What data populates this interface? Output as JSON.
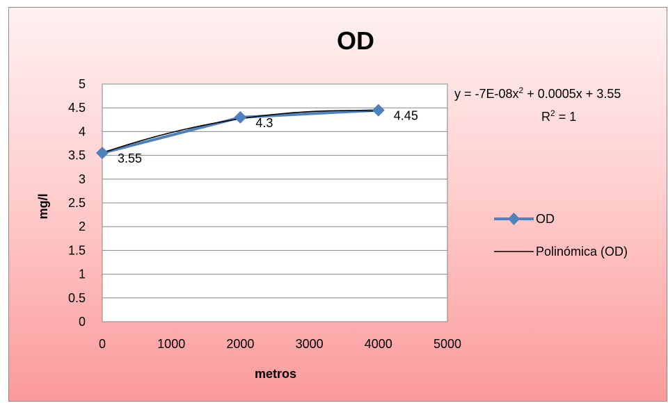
{
  "chart_data": {
    "type": "line",
    "title": "OD",
    "xlabel": "metros",
    "ylabel": "mg/l",
    "xlim": [
      0,
      5000
    ],
    "ylim": [
      0,
      5
    ],
    "x_ticks": [
      "0",
      "1000",
      "2000",
      "3000",
      "4000",
      "5000"
    ],
    "y_ticks": [
      "0",
      "0.5",
      "1",
      "1.5",
      "2",
      "2.5",
      "3",
      "3.5",
      "4",
      "4.5",
      "5"
    ],
    "grid": "horizontal",
    "series": [
      {
        "name": "OD",
        "x": [
          0,
          2000,
          4000
        ],
        "y": [
          3.55,
          4.3,
          4.45
        ],
        "data_labels": [
          "3.55",
          "4.3",
          "4.45"
        ],
        "color": "#4f81bd",
        "marker": "diamond"
      }
    ],
    "trendline": {
      "name": "Polinómica (OD)",
      "type": "polynomial",
      "order": 2,
      "coefficients": {
        "a": -7e-08,
        "b": 0.0005,
        "c": 3.55
      },
      "equation": {
        "prefix": "y = -7E-08x",
        "sup": "2",
        "suffix": " + 0.0005x + 3.55",
        "r2_prefix": "R",
        "r2_sup": "2",
        "r2_suffix": " = 1"
      },
      "color": "#000000"
    },
    "legend_position": "right",
    "background": {
      "top": "#fff1f1",
      "bottom": "#fb9a9a"
    },
    "plot_background": "#ffffff"
  }
}
